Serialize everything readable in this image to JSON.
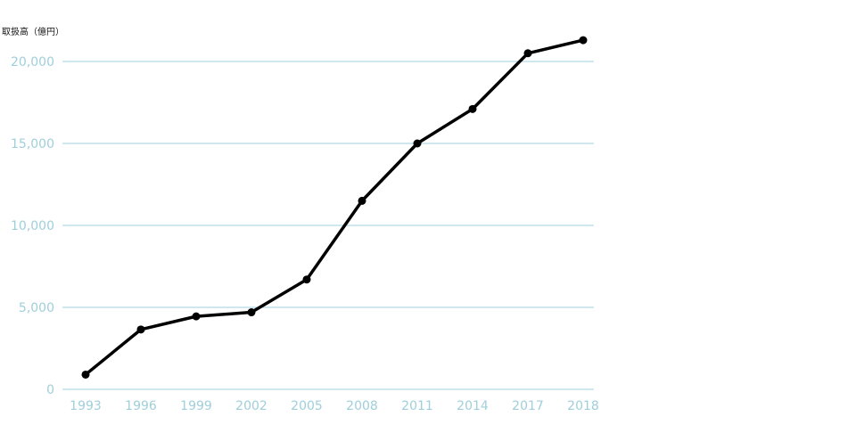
{
  "chart_data": {
    "type": "line",
    "ylabel": "取扱高（億円）",
    "xlabel": "",
    "title": "",
    "ylim": [
      0,
      20000
    ],
    "y_ticks": [
      0,
      5000,
      10000,
      15000,
      20000
    ],
    "y_tick_labels": [
      "0",
      "5,000",
      "10,000",
      "15,000",
      "20,000"
    ],
    "categories": [
      "1993",
      "1996",
      "1999",
      "2002",
      "2005",
      "2008",
      "2011",
      "2014",
      "2017",
      "2018"
    ],
    "series": [
      {
        "values": [
          900,
          3650,
          4450,
          4700,
          6700,
          11500,
          15000,
          17100,
          20500,
          21300
        ]
      }
    ],
    "grid": true,
    "legend": "none",
    "colors": {
      "line": "#000000",
      "grid": "#9fcfdb",
      "tick_labels": "#9fcfdb",
      "ylabel": "#111111"
    }
  }
}
